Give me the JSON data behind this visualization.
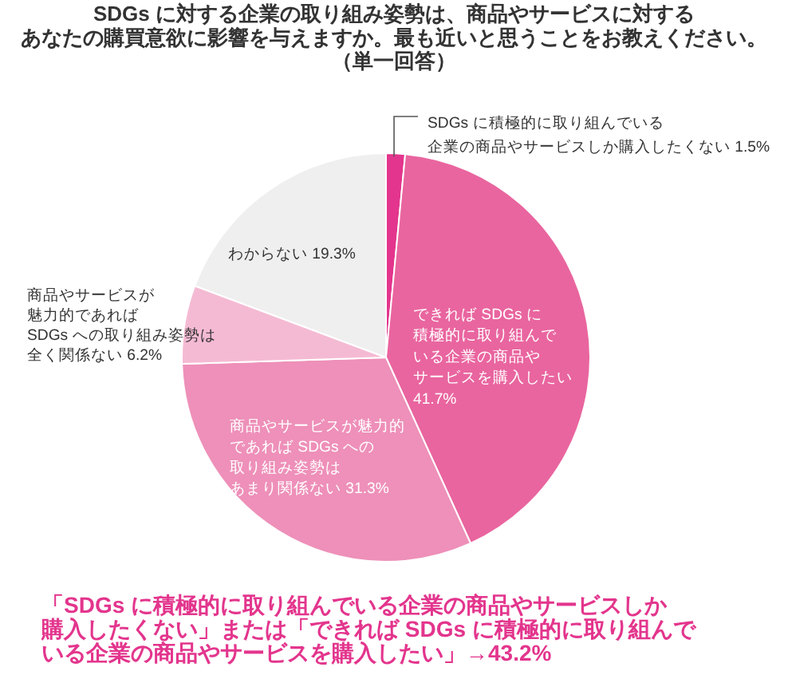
{
  "chart_data": {
    "type": "pie",
    "title": "SDGs に対する企業の取り組み姿勢は、商品やサービスに対するあなたの購買意欲に影響を与えますか。最も近いと思うことをお教えください。",
    "subtitle": "（単一回答）",
    "categories": [
      "SDGs に積極的に取り組んでいる企業の商品やサービスしか購入したくない",
      "できれば SDGs に積極的に取り組んでいる企業の商品やサービスを購入したい",
      "商品やサービスが魅力的であれば SDGs への取り組み姿勢はあまり関係ない",
      "商品やサービスが魅力的であれば SDGs への取り組み姿勢は全く関係ない",
      "わからない"
    ],
    "values": [
      1.5,
      41.7,
      31.3,
      6.2,
      19.3
    ],
    "value_labels": [
      "1.5%",
      "41.7%",
      "31.3%",
      "6.2%",
      "19.3%"
    ],
    "colors": [
      "#e3358d",
      "#e9659f",
      "#ee90b9",
      "#f5bad3",
      "#efefef"
    ],
    "annotations": [
      "「SDGs に積極的に取り組んでいる企業の商品やサービスしか購入したくない」または「できれば SDGs に積極的に取り組んでいる企業の商品やサービスを購入したい」→43.2%"
    ]
  }
}
